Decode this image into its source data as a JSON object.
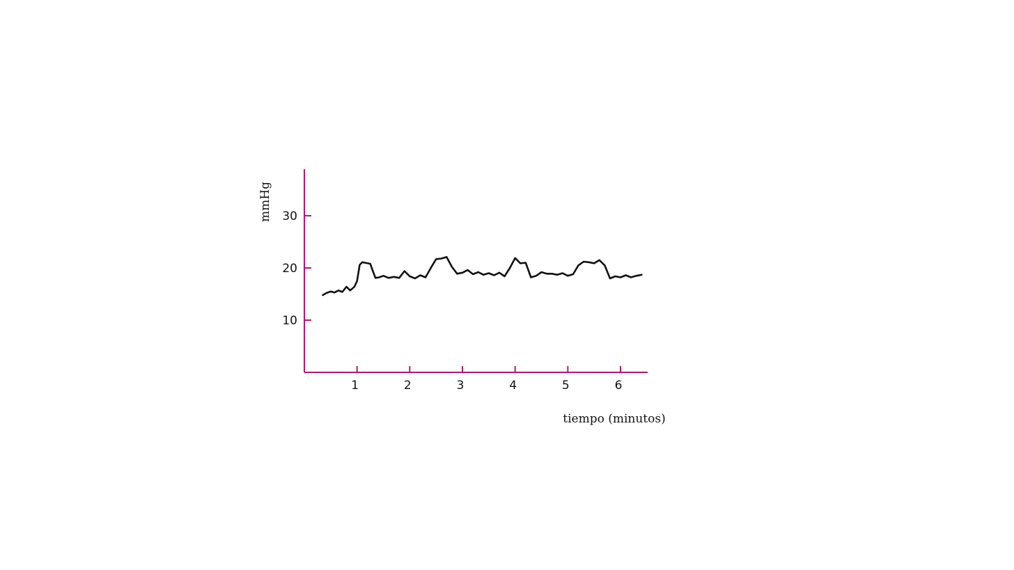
{
  "chart_data": {
    "type": "line",
    "title": "",
    "xlabel": "tiempo (minutos)",
    "ylabel": "mmHg",
    "xlim": [
      0,
      6.5
    ],
    "ylim": [
      0,
      38
    ],
    "xticks": [
      1,
      2,
      3,
      4,
      5,
      6
    ],
    "xtick_labels": [
      "1",
      "2",
      "3",
      "4",
      "5",
      "6"
    ],
    "yticks": [
      10,
      20,
      30
    ],
    "ytick_labels": [
      "10",
      "20",
      "30"
    ],
    "grid": false,
    "legend": "none",
    "axis_color": "#b0186e",
    "line_color": "#111111",
    "series": [
      {
        "x": [
          0.35,
          0.42,
          0.5,
          0.57,
          0.65,
          0.72,
          0.8,
          0.87,
          0.95,
          1.0,
          1.05,
          1.1,
          1.15,
          1.25,
          1.3,
          1.35,
          1.42,
          1.5,
          1.6,
          1.7,
          1.8,
          1.9,
          2.0,
          2.1,
          2.2,
          2.3,
          2.4,
          2.5,
          2.6,
          2.7,
          2.8,
          2.9,
          3.0,
          3.1,
          3.2,
          3.3,
          3.4,
          3.5,
          3.6,
          3.7,
          3.8,
          3.9,
          4.0,
          4.1,
          4.2,
          4.3,
          4.4,
          4.5,
          4.6,
          4.7,
          4.8,
          4.9,
          5.0,
          5.1,
          5.2,
          5.3,
          5.4,
          5.5,
          5.6,
          5.7,
          5.8,
          5.9,
          6.0,
          6.1,
          6.2,
          6.3,
          6.4
        ],
        "y": [
          14.8,
          15.2,
          15.5,
          15.3,
          15.7,
          15.4,
          16.4,
          15.7,
          16.4,
          17.5,
          20.6,
          21.1,
          21.0,
          20.8,
          19.4,
          18.1,
          18.2,
          18.5,
          18.1,
          18.3,
          18.1,
          19.4,
          18.4,
          18.0,
          18.6,
          18.2,
          20.0,
          21.7,
          21.8,
          22.1,
          20.2,
          18.9,
          19.1,
          19.6,
          18.8,
          19.2,
          18.7,
          19.0,
          18.6,
          19.1,
          18.4,
          20.0,
          21.9,
          20.9,
          21.0,
          18.2,
          18.5,
          19.2,
          18.9,
          18.9,
          18.7,
          19.0,
          18.5,
          18.8,
          20.5,
          21.2,
          21.1,
          20.9,
          21.5,
          20.5,
          18.0,
          18.4,
          18.2,
          18.6,
          18.2,
          18.5,
          18.7
        ]
      }
    ]
  }
}
